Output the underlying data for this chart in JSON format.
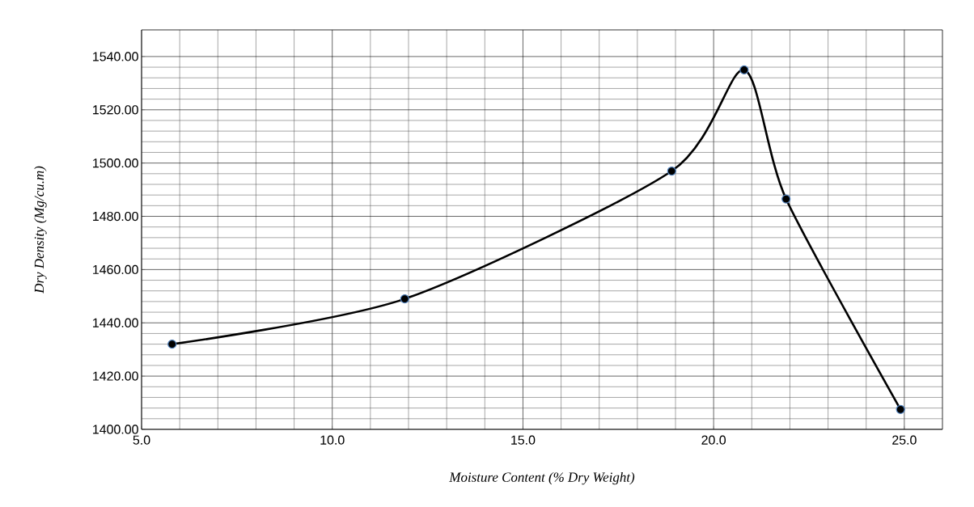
{
  "chart_data": {
    "type": "line",
    "xlabel": "Moisture  Content (%  Dry  Weight)",
    "ylabel": "Dry  Density (Mg/cu.m)",
    "x": [
      5.8,
      11.9,
      18.9,
      20.8,
      21.9,
      24.9
    ],
    "series": [
      {
        "color": "#000000",
        "values": [
          1432,
          1449,
          1497,
          1535,
          1486.5,
          1407.5
        ]
      }
    ],
    "xlim": [
      5,
      26
    ],
    "xticks": [
      {
        "value": 5,
        "label": "5.0"
      },
      {
        "value": 10,
        "label": "10.0"
      },
      {
        "value": 15,
        "label": "15.0"
      },
      {
        "value": 20,
        "label": "20.0"
      },
      {
        "value": 25,
        "label": "25.0"
      }
    ],
    "ylim": [
      1400,
      1550
    ],
    "yticks": [
      {
        "value": 1400,
        "label": "1400.00"
      },
      {
        "value": 1420,
        "label": "1420.00"
      },
      {
        "value": 1440,
        "label": "1440.00"
      },
      {
        "value": 1460,
        "label": "1460.00"
      },
      {
        "value": 1480,
        "label": "1480.00"
      },
      {
        "value": 1500,
        "label": "1500.00"
      },
      {
        "value": 1520,
        "label": "1520.00"
      },
      {
        "value": 1540,
        "label": "1540.00"
      }
    ],
    "grid": true,
    "marker": "circle",
    "line_style": "solid"
  }
}
